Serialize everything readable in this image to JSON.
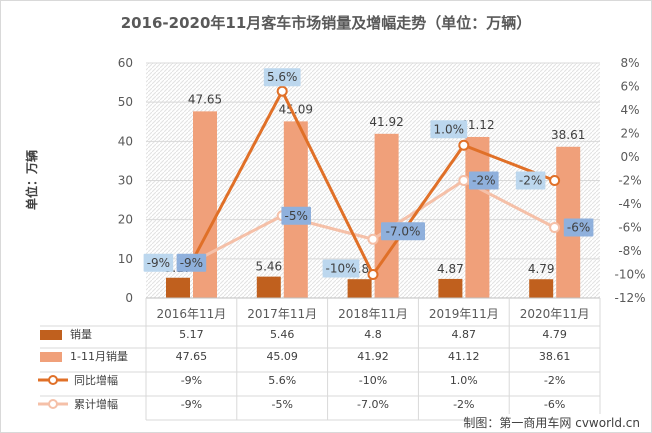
{
  "chart_data": {
    "type": "bar",
    "title": "2016-2020年11月客车市场销量及增幅走势（单位：万辆）",
    "ylabel": "单位：万辆",
    "categories": [
      "2016年11月",
      "2017年11月",
      "2018年11月",
      "2019年11月",
      "2020年11月"
    ],
    "ylim": [
      0,
      60
    ],
    "yticks": [
      0,
      10,
      20,
      30,
      40,
      50,
      60
    ],
    "y2lim": [
      -12,
      8
    ],
    "y2ticks": [
      "-12%",
      "-10%",
      "-8%",
      "-6%",
      "-4%",
      "-2%",
      "0%",
      "2%",
      "4%",
      "6%",
      "8%"
    ],
    "series": [
      {
        "name": "销量",
        "kind": "bar",
        "axis": "left",
        "color": "#c0601e",
        "values": [
          5.17,
          5.46,
          4.8,
          4.87,
          4.79
        ],
        "labels": [
          "5.17",
          "5.46",
          "4.8",
          "4.87",
          "4.79"
        ]
      },
      {
        "name": "1-11月销量",
        "kind": "bar",
        "axis": "left",
        "color": "#f0a07a",
        "values": [
          47.65,
          45.09,
          41.92,
          41.12,
          38.61
        ],
        "labels": [
          "47.65",
          "45.09",
          "41.92",
          "41.12",
          "38.61"
        ]
      },
      {
        "name": "同比增幅",
        "kind": "line",
        "axis": "right",
        "color": "#e07028",
        "values": [
          -9,
          5.6,
          -10,
          1.0,
          -2
        ],
        "labels": [
          "-9%",
          "5.6%",
          "-10%",
          "1.0%",
          "-2%"
        ]
      },
      {
        "name": "累计增幅",
        "kind": "line",
        "axis": "right",
        "color": "#f5c0a8",
        "values": [
          -9,
          -5,
          -7.0,
          -2,
          -6
        ],
        "labels": [
          "-9%",
          "-5%",
          "-7.0%",
          "-2%",
          "-6%"
        ]
      }
    ],
    "grid": true,
    "legend": "data table below plot"
  },
  "watermark": "制图：第一商用车网 cvworld.cn"
}
